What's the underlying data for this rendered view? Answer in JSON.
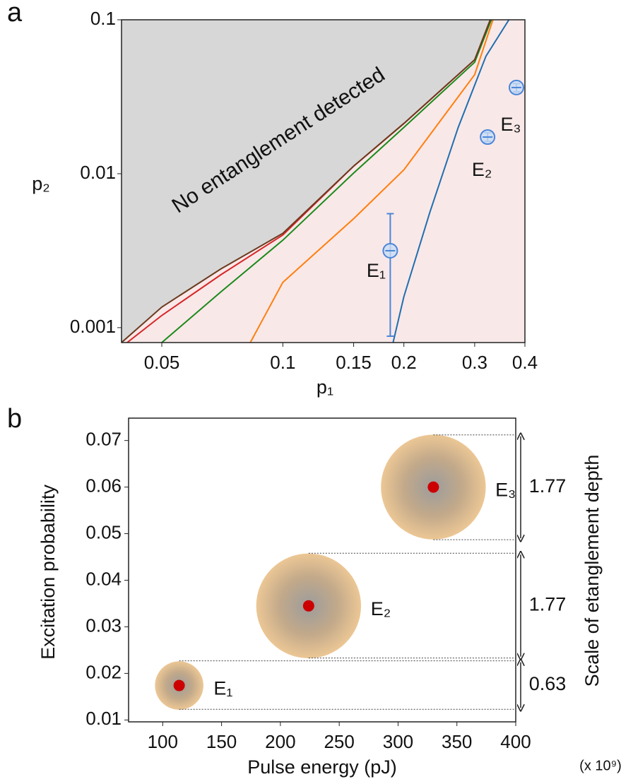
{
  "chart_data": [
    {
      "type": "line",
      "panel": "a",
      "xscale": "log",
      "yscale": "log",
      "xlabel": "p₁",
      "ylabel": "p₂",
      "annotation": "No entanglement detected",
      "region_color": "#d7d7d7",
      "background": "#f9e8e8",
      "xlim": [
        0.0397,
        0.4
      ],
      "ylim": [
        0.0008,
        0.1
      ],
      "xticks": [
        0.05,
        0.1,
        0.15,
        0.2,
        0.3,
        0.4
      ],
      "yticks": [
        0.001,
        0.01,
        0.1
      ],
      "series": [
        {
          "color": "#d62728",
          "x": [
            0.041,
            0.05,
            0.07,
            0.1,
            0.15,
            0.2,
            0.3,
            0.328
          ],
          "values": [
            0.0008,
            0.0012,
            0.0022,
            0.004,
            0.0112,
            0.0212,
            0.055,
            0.1
          ]
        },
        {
          "color": "#1a8a1a",
          "x": [
            0.05,
            0.07,
            0.1,
            0.15,
            0.2,
            0.3,
            0.33
          ],
          "values": [
            0.0008,
            0.0017,
            0.0037,
            0.0101,
            0.02,
            0.053,
            0.1
          ]
        },
        {
          "color": "#ff7f0e",
          "x": [
            0.083,
            0.1,
            0.15,
            0.2,
            0.3,
            0.333
          ],
          "values": [
            0.0008,
            0.00197,
            0.0051,
            0.0106,
            0.044,
            0.1
          ]
        },
        {
          "color": "#1f6fb0",
          "x": [
            0.188,
            0.2,
            0.232,
            0.273,
            0.32,
            0.365
          ],
          "values": [
            0.0008,
            0.00159,
            0.0056,
            0.02,
            0.058,
            0.1
          ]
        },
        {
          "color": "#6b3a1e",
          "x": [
            0.0397,
            0.05,
            0.07,
            0.1,
            0.15,
            0.2,
            0.3,
            0.328
          ],
          "values": [
            0.0008,
            0.00136,
            0.0024,
            0.0041,
            0.0112,
            0.0212,
            0.055,
            0.1
          ]
        }
      ],
      "points": {
        "color": "#4a86d8",
        "labels": [
          "E₁",
          "E₂",
          "E₃"
        ],
        "x": [
          0.185,
          0.323,
          0.381
        ],
        "values": [
          0.00316,
          0.0173,
          0.0363
        ],
        "y_low": [
          0.00088,
          0.0162,
          0.034
        ],
        "y_high": [
          0.0055,
          0.0185,
          0.0385
        ]
      }
    },
    {
      "type": "bubble",
      "panel": "b",
      "xlabel": "Pulse energy (pJ)",
      "ylabel": "Excitation probability",
      "y2label": "Scale of etanglement depth",
      "y2unit": "(x 10⁹)",
      "xlim": [
        71,
        400
      ],
      "ylim": [
        0.0096,
        0.0748
      ],
      "xticks": [
        100,
        150,
        200,
        250,
        300,
        350,
        400
      ],
      "yticks": [
        0.01,
        0.02,
        0.03,
        0.04,
        0.05,
        0.06,
        0.07
      ],
      "labels": [
        "E₁",
        "E₂",
        "E₃"
      ],
      "x": [
        114,
        224,
        330
      ],
      "values": [
        0.0174,
        0.0345,
        0.06
      ],
      "y_low": [
        0.0123,
        0.0233,
        0.0487
      ],
      "y_high": [
        0.0227,
        0.0458,
        0.0712
      ],
      "depth": [
        0.63,
        1.77,
        1.77
      ],
      "dot_color": "#cc0000"
    }
  ]
}
